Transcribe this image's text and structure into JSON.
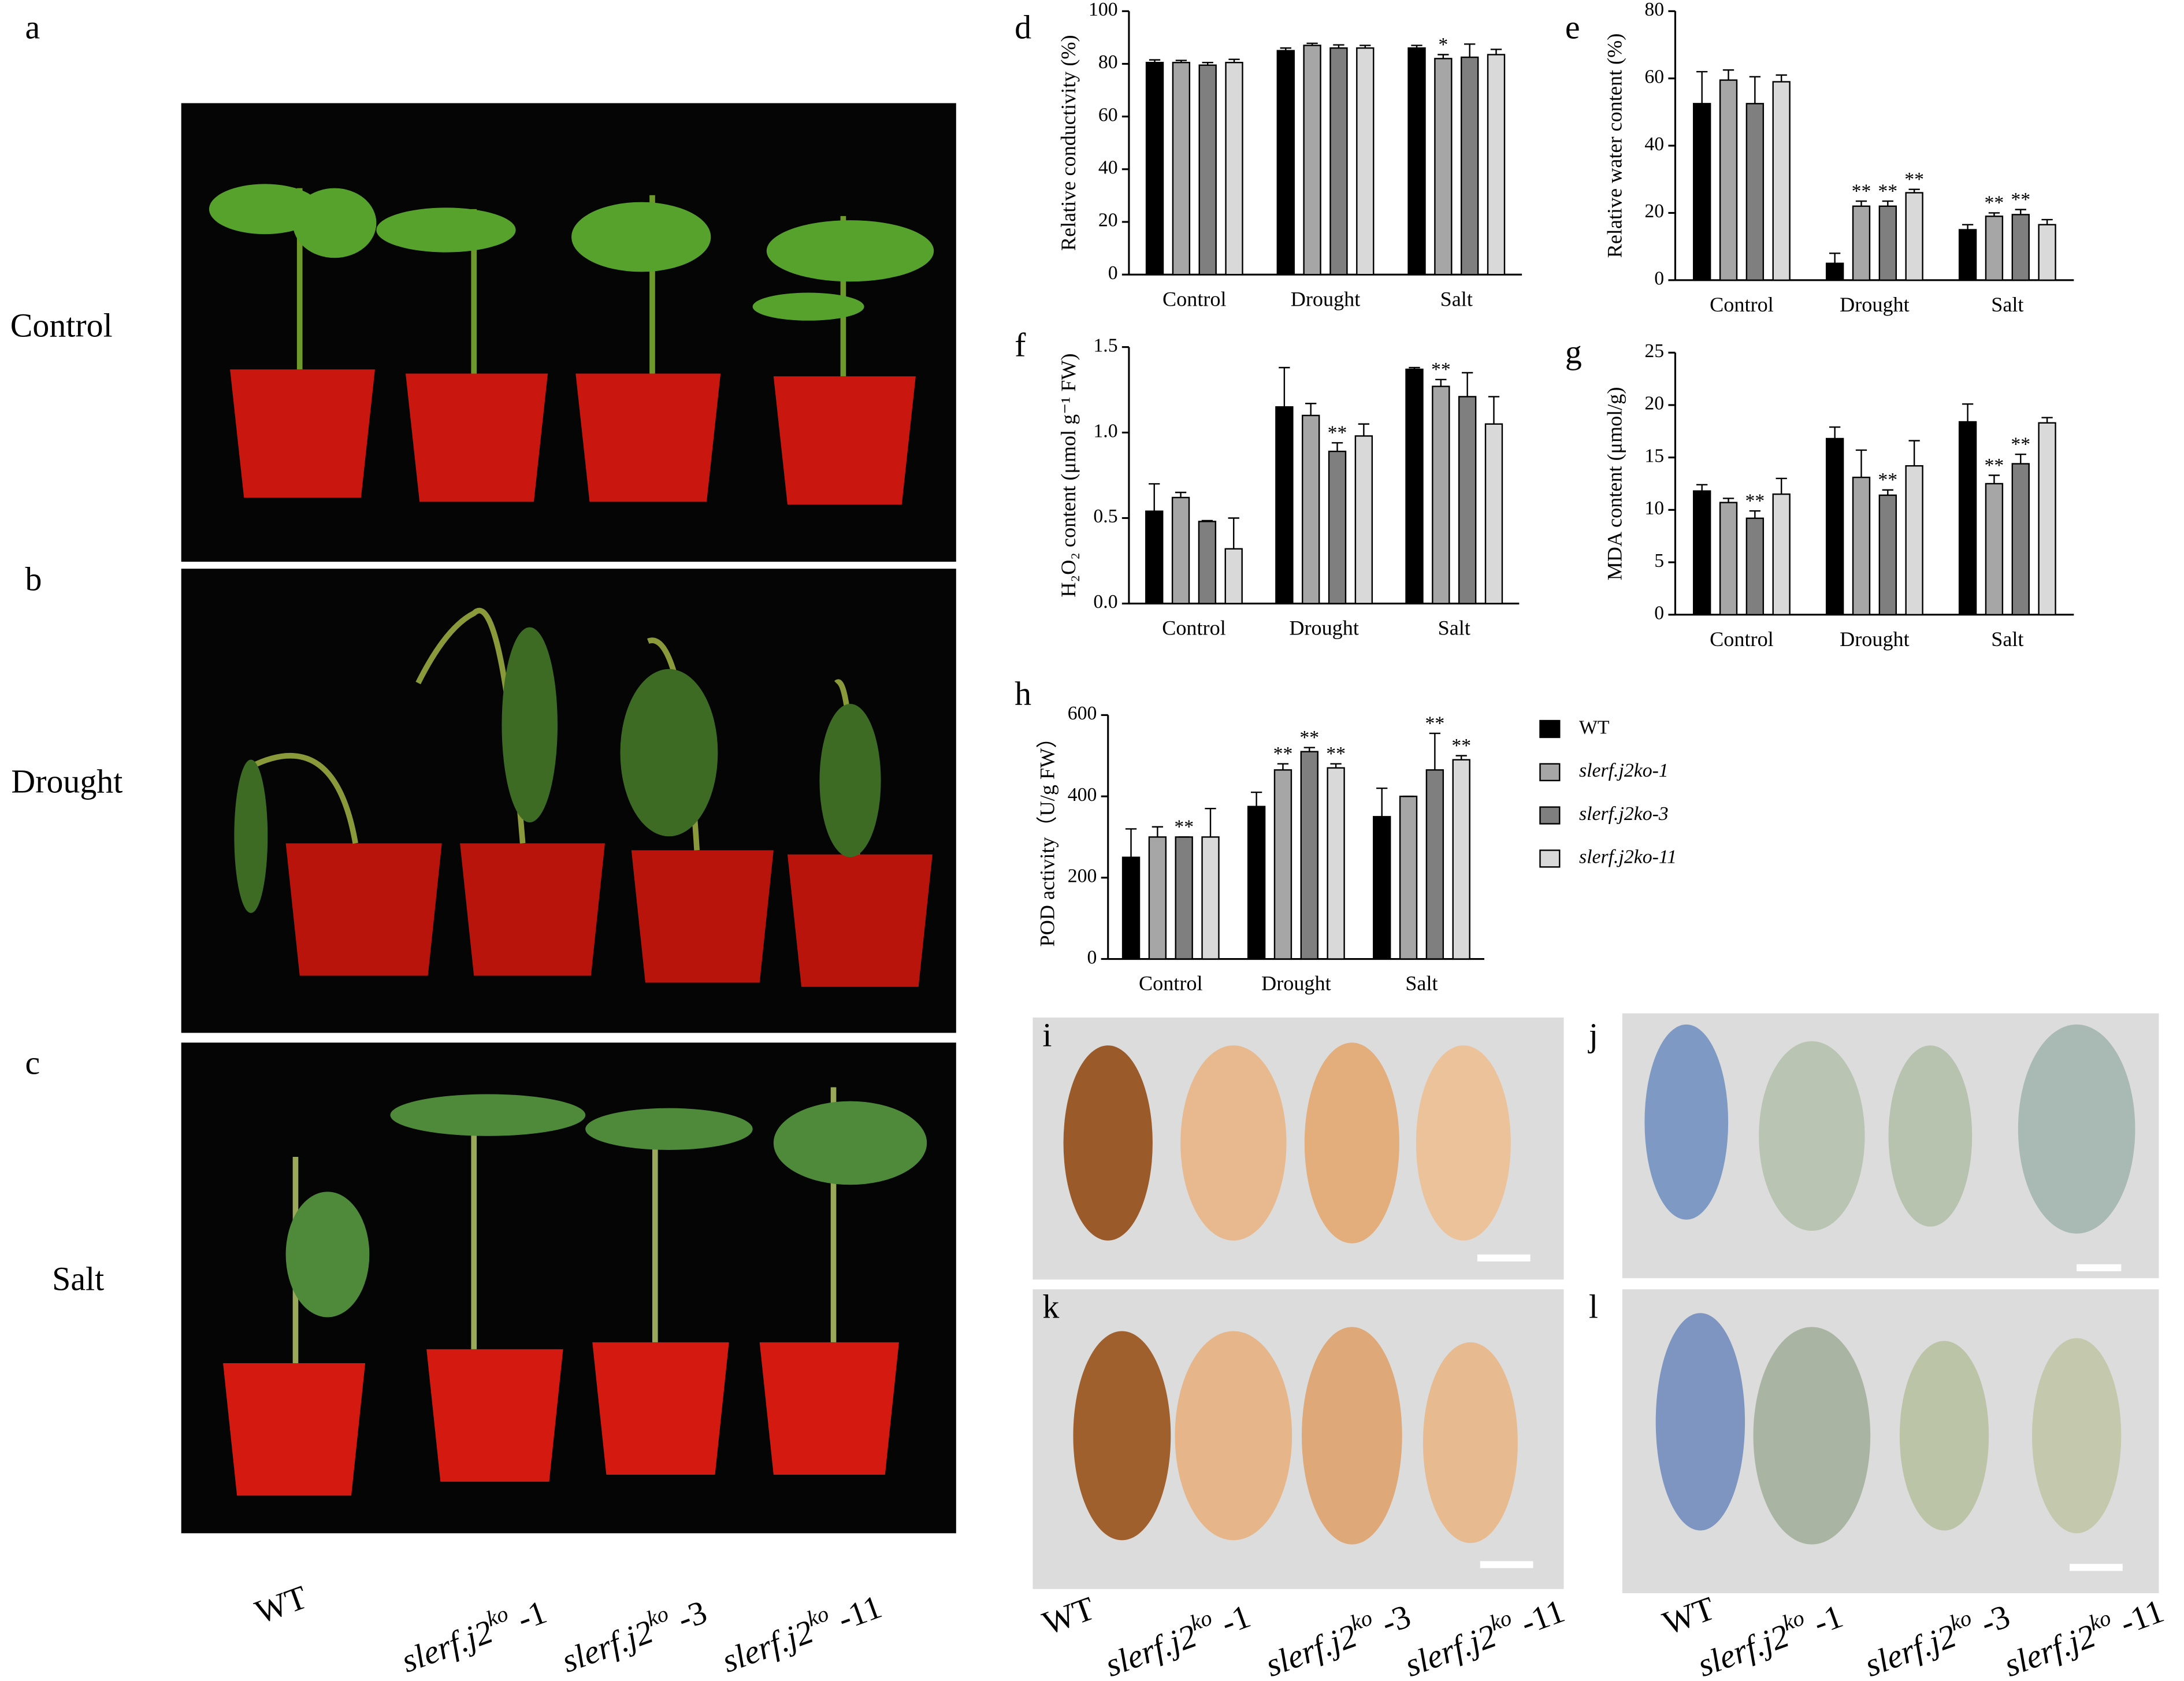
{
  "panel_letters": [
    "a",
    "b",
    "c",
    "d",
    "e",
    "f",
    "g",
    "h",
    "i",
    "j",
    "k",
    "l"
  ],
  "row_labels": [
    "Control",
    "Drought",
    "Salt"
  ],
  "genotypes": [
    {
      "text": "WT"
    },
    {
      "text": "slerf.j2",
      "sup": "ko",
      "suffix": " -1"
    },
    {
      "text": "slerf.j2",
      "sup": "ko",
      "suffix": " -3"
    },
    {
      "text": "slerf.j2",
      "sup": "ko",
      "suffix": " -11"
    }
  ],
  "chart_data": [
    {
      "type": "bar",
      "y_label": "Relative conductivity (%)",
      "categories": [
        "Control",
        "Drought",
        "Salt"
      ],
      "ylim": [
        0,
        100
      ],
      "yticks": [
        0,
        20,
        40,
        60,
        80,
        100
      ],
      "series": [
        {
          "name": "WT",
          "color": "#000000",
          "values": [
            80.5,
            85,
            86
          ],
          "errors": [
            1,
            1,
            1
          ]
        },
        {
          "name": "slerf.j2ko-1",
          "color": "#a6a6a6",
          "values": [
            80.5,
            87,
            82
          ],
          "errors": [
            0.8,
            0.8,
            1.5
          ],
          "significance": [
            null,
            null,
            "*"
          ]
        },
        {
          "name": "slerf.j2ko-3",
          "color": "#7f7f7f",
          "values": [
            79.5,
            86,
            82.5
          ],
          "errors": [
            1,
            1.2,
            5
          ]
        },
        {
          "name": "slerf.j2ko-11",
          "color": "#d9d9d9",
          "values": [
            80.5,
            86,
            83.5
          ],
          "errors": [
            1.2,
            1,
            2
          ]
        }
      ]
    },
    {
      "type": "bar",
      "y_label": "Relative water content (%)",
      "categories": [
        "Control",
        "Drought",
        "Salt"
      ],
      "ylim": [
        0,
        80
      ],
      "yticks": [
        0,
        20,
        40,
        60,
        80
      ],
      "series": [
        {
          "name": "WT",
          "color": "#000000",
          "values": [
            52.5,
            5,
            15
          ],
          "errors": [
            9.5,
            3,
            1.5
          ]
        },
        {
          "name": "slerf.j2ko-1",
          "color": "#a6a6a6",
          "values": [
            59.5,
            22,
            19
          ],
          "errors": [
            3,
            1.5,
            1
          ],
          "significance": [
            null,
            "**",
            "**"
          ]
        },
        {
          "name": "slerf.j2ko-3",
          "color": "#7f7f7f",
          "values": [
            52.5,
            22,
            19.5
          ],
          "errors": [
            8,
            1.5,
            1.5
          ],
          "significance": [
            null,
            "**",
            "**"
          ]
        },
        {
          "name": "slerf.j2ko-11",
          "color": "#d9d9d9",
          "values": [
            59,
            26,
            16.5
          ],
          "errors": [
            2,
            1,
            1.5
          ],
          "significance": [
            null,
            "**",
            null
          ]
        }
      ]
    },
    {
      "type": "bar",
      "y_label": "H₂O₂ content (μmol g⁻¹ FW)",
      "categories": [
        "Control",
        "Drought",
        "Salt"
      ],
      "ylim": [
        0,
        1.5
      ],
      "yticks": [
        {
          "value": 0,
          "label": "0.0"
        },
        {
          "value": 0.5,
          "label": "0.5"
        },
        {
          "value": 1,
          "label": "1.0"
        },
        {
          "value": 1.5,
          "label": "1.5"
        }
      ],
      "series": [
        {
          "name": "WT",
          "color": "#000000",
          "values": [
            0.54,
            1.15,
            1.37
          ],
          "errors": [
            0.16,
            0.23,
            0.01
          ]
        },
        {
          "name": "slerf.j2ko-1",
          "color": "#a6a6a6",
          "values": [
            0.62,
            1.1,
            1.27
          ],
          "errors": [
            0.03,
            0.07,
            0.04
          ],
          "significance": [
            null,
            null,
            "**"
          ]
        },
        {
          "name": "slerf.j2ko-3",
          "color": "#7f7f7f",
          "values": [
            0.48,
            0.89,
            1.21
          ],
          "errors": [
            0.005,
            0.05,
            0.14
          ],
          "significance": [
            null,
            "**",
            null
          ]
        },
        {
          "name": "slerf.j2ko-11",
          "color": "#d9d9d9",
          "values": [
            0.32,
            0.98,
            1.05
          ],
          "errors": [
            0.18,
            0.07,
            0.16
          ]
        }
      ]
    },
    {
      "type": "bar",
      "y_label": "MDA content (μmol/g)",
      "categories": [
        "Control",
        "Drought",
        "Salt"
      ],
      "ylim": [
        0,
        25
      ],
      "yticks": [
        0,
        5,
        10,
        15,
        20,
        25
      ],
      "series": [
        {
          "name": "WT",
          "color": "#000000",
          "values": [
            11.8,
            16.8,
            18.4
          ],
          "errors": [
            0.6,
            1.1,
            1.7
          ]
        },
        {
          "name": "slerf.j2ko-1",
          "color": "#a6a6a6",
          "values": [
            10.7,
            13.1,
            12.5
          ],
          "errors": [
            0.4,
            2.6,
            0.8
          ],
          "significance": [
            null,
            null,
            "**"
          ]
        },
        {
          "name": "slerf.j2ko-3",
          "color": "#7f7f7f",
          "values": [
            9.2,
            11.4,
            14.4
          ],
          "errors": [
            0.7,
            0.5,
            0.9
          ],
          "significance": [
            "**",
            "**",
            "**"
          ]
        },
        {
          "name": "slerf.j2ko-11",
          "color": "#d9d9d9",
          "values": [
            11.5,
            14.2,
            18.3
          ],
          "errors": [
            1.5,
            2.4,
            0.5
          ]
        }
      ]
    },
    {
      "type": "bar",
      "y_label": "POD activity（U/g FW）",
      "categories": [
        "Control",
        "Drought",
        "Salt"
      ],
      "ylim": [
        0,
        600
      ],
      "yticks": [
        0,
        200,
        400,
        600
      ],
      "legend": "right",
      "series": [
        {
          "name": "WT",
          "color": "#000000",
          "values": [
            250,
            375,
            350
          ],
          "errors": [
            70,
            35,
            70
          ]
        },
        {
          "name": "slerf.j2ko-1",
          "color": "#a6a6a6",
          "values": [
            300,
            465,
            400
          ],
          "errors": [
            25,
            15,
            0
          ],
          "significance": [
            null,
            "**",
            null
          ]
        },
        {
          "name": "slerf.j2ko-3",
          "color": "#7f7f7f",
          "values": [
            300,
            510,
            465
          ],
          "errors": [
            0,
            10,
            90
          ],
          "significance": [
            "**",
            "**",
            "**"
          ]
        },
        {
          "name": "slerf.j2ko-11",
          "color": "#d9d9d9",
          "values": [
            300,
            470,
            490
          ],
          "errors": [
            70,
            10,
            10
          ],
          "significance": [
            null,
            "**",
            "**"
          ]
        }
      ]
    }
  ]
}
